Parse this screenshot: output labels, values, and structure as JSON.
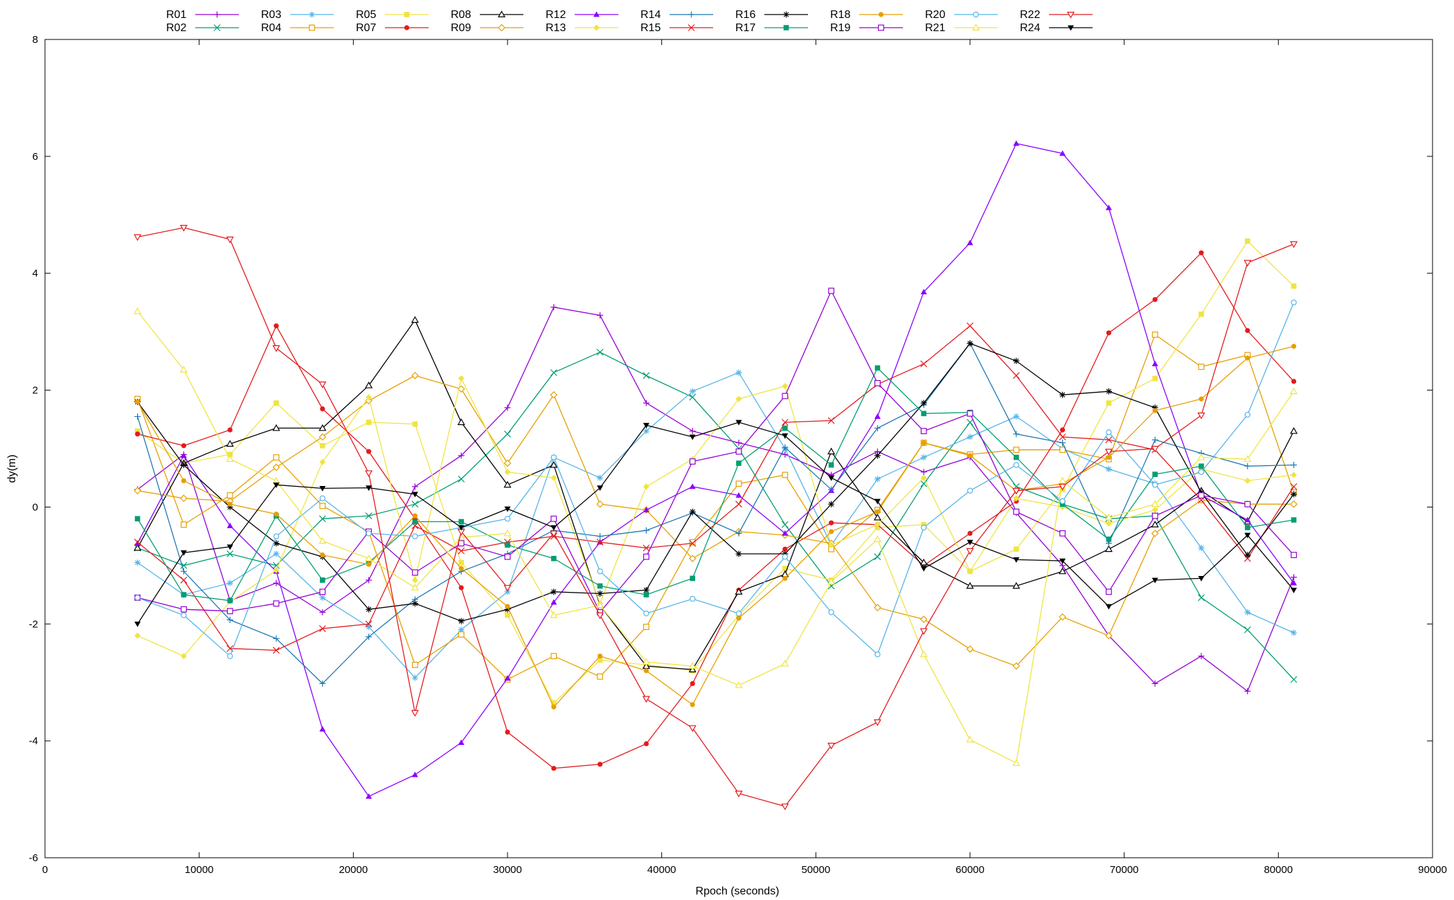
{
  "chart_data": {
    "type": "line",
    "xlabel": "Rpoch (seconds)",
    "ylabel": "dy(m)",
    "xlim": [
      0,
      90000
    ],
    "ylim": [
      -6,
      8
    ],
    "xticks": [
      0,
      10000,
      20000,
      30000,
      40000,
      50000,
      60000,
      70000,
      80000,
      90000
    ],
    "yticks": [
      -6,
      -4,
      -2,
      0,
      2,
      4,
      6,
      8
    ],
    "grid": false,
    "legend_position": "top-left, outside plot, two rows",
    "x": [
      6000,
      9000,
      12000,
      15000,
      18000,
      21000,
      24000,
      27000,
      30000,
      33000,
      36000,
      39000,
      42000,
      45000,
      48000,
      51000,
      54000,
      57000,
      60000,
      63000,
      66000,
      69000,
      72000,
      75000,
      78000,
      81000
    ],
    "series": [
      {
        "name": "R01",
        "color": "#9400d3",
        "marker": "plus",
        "values": [
          0.3,
          0.9,
          -1.6,
          -1.3,
          -1.8,
          -1.25,
          0.35,
          0.88,
          1.7,
          3.42,
          3.28,
          1.78,
          1.3,
          1.1,
          0.9,
          0.55,
          0.95,
          0.6,
          0.85,
          -0.1,
          -1.0,
          -2.2,
          -3.02,
          -2.55,
          -3.15,
          -1.2
        ]
      },
      {
        "name": "R02",
        "color": "#009e73",
        "marker": "x",
        "values": [
          -0.7,
          -1.0,
          -0.8,
          -1.0,
          -0.2,
          -0.15,
          0.05,
          0.48,
          1.25,
          2.3,
          2.65,
          2.25,
          1.88,
          1.0,
          -0.3,
          -1.35,
          -0.85,
          0.4,
          1.45,
          0.35,
          0.05,
          -0.2,
          -0.15,
          -1.55,
          -2.1,
          -2.95
        ]
      },
      {
        "name": "R03",
        "color": "#56b4e9",
        "marker": "star",
        "values": [
          -0.95,
          -1.5,
          -1.3,
          -0.8,
          -1.55,
          -2.05,
          -2.92,
          -2.1,
          -1.45,
          0.85,
          0.5,
          1.3,
          1.98,
          2.3,
          1.0,
          -0.65,
          0.48,
          0.85,
          1.2,
          1.55,
          1.0,
          0.65,
          0.4,
          -0.7,
          -1.8,
          -2.15
        ]
      },
      {
        "name": "R04",
        "color": "#e69f00",
        "marker": "open-square",
        "values": [
          1.85,
          -0.3,
          0.2,
          0.85,
          0.02,
          -0.42,
          -2.7,
          -2.18,
          -2.95,
          -2.55,
          -2.9,
          -2.05,
          -0.6,
          0.4,
          0.55,
          -0.72,
          -0.05,
          1.1,
          0.9,
          0.98,
          0.98,
          0.82,
          2.95,
          2.4,
          2.6,
          0.25
        ]
      },
      {
        "name": "R05",
        "color": "#f0e442",
        "marker": "filled-square",
        "values": [
          1.3,
          0.75,
          0.9,
          1.78,
          1.05,
          1.45,
          1.42,
          -0.95,
          -1.85,
          -3.35,
          -2.62,
          -2.7,
          -2.8,
          -1.85,
          -1.05,
          -1.25,
          -0.35,
          -0.3,
          -1.1,
          -0.72,
          0.3,
          1.78,
          2.2,
          3.3,
          4.55,
          3.78
        ]
      },
      {
        "name": "R07",
        "color": "#e41a1c",
        "marker": "filled-circle",
        "values": [
          1.25,
          1.05,
          1.32,
          3.1,
          1.68,
          0.95,
          -0.2,
          -1.38,
          -3.85,
          -4.47,
          -4.4,
          -4.05,
          -3.02,
          -1.42,
          -0.72,
          -0.27,
          -0.3,
          -1.0,
          -0.45,
          0.1,
          1.32,
          2.98,
          3.55,
          4.35,
          3.02,
          2.15
        ]
      },
      {
        "name": "R08",
        "color": "#000000",
        "marker": "open-triangle",
        "values": [
          -0.7,
          0.75,
          1.08,
          1.35,
          1.35,
          2.08,
          3.2,
          1.45,
          0.38,
          0.72,
          -1.68,
          -2.72,
          -2.78,
          -1.45,
          -1.15,
          0.95,
          -0.18,
          -0.95,
          -1.35,
          -1.35,
          -1.1,
          -0.72,
          -0.3,
          0.28,
          -0.25,
          1.3
        ]
      },
      {
        "name": "R09",
        "color": "#e69f00",
        "marker": "open-diamond",
        "values": [
          0.28,
          0.15,
          0.1,
          0.68,
          1.2,
          1.82,
          2.25,
          2.02,
          0.75,
          1.92,
          0.05,
          -0.05,
          -0.88,
          -0.42,
          -0.48,
          -0.62,
          -1.72,
          -1.92,
          -2.43,
          -2.72,
          -1.88,
          -2.2,
          -0.45,
          0.12,
          0.05,
          0.05
        ]
      },
      {
        "name": "R12",
        "color": "#8b00ff",
        "marker": "filled-triangle",
        "values": [
          -0.62,
          0.88,
          -0.32,
          -1.1,
          -3.8,
          -4.95,
          -4.58,
          -4.03,
          -2.93,
          -1.63,
          -0.6,
          -0.05,
          0.35,
          0.2,
          -0.45,
          0.28,
          1.55,
          3.68,
          4.52,
          6.22,
          6.05,
          5.12,
          2.45,
          0.2,
          -0.22,
          -1.3
        ]
      },
      {
        "name": "R13",
        "color": "#f0e442",
        "marker": "filled-diamond",
        "values": [
          -2.2,
          -2.55,
          -1.62,
          -1.08,
          0.77,
          1.88,
          -1.25,
          2.2,
          0.6,
          0.5,
          -1.65,
          0.35,
          0.82,
          1.85,
          2.07,
          -0.65,
          -0.3,
          0.5,
          -1.1,
          0.15,
          0.0,
          -0.28,
          -0.05,
          0.65,
          0.45,
          0.55
        ]
      },
      {
        "name": "R14",
        "color": "#1f78b4",
        "marker": "plus",
        "values": [
          1.55,
          -1.1,
          -1.93,
          -2.25,
          -3.02,
          -2.22,
          -1.58,
          -1.1,
          -0.8,
          -0.4,
          -0.5,
          -0.4,
          -0.1,
          -0.45,
          1.02,
          0.3,
          1.35,
          1.75,
          2.8,
          1.25,
          1.1,
          -0.62,
          1.15,
          0.92,
          0.7,
          0.72
        ]
      },
      {
        "name": "R15",
        "color": "#e41a1c",
        "marker": "x",
        "values": [
          -0.6,
          -1.25,
          -2.42,
          -2.45,
          -2.08,
          -2.0,
          -0.32,
          -0.75,
          -0.6,
          -0.5,
          -0.6,
          -0.7,
          -0.62,
          0.05,
          1.45,
          1.48,
          2.1,
          2.45,
          3.1,
          2.25,
          1.2,
          1.15,
          0.98,
          0.12,
          -0.88,
          0.35
        ]
      },
      {
        "name": "R16",
        "color": "#000000",
        "marker": "asterisk",
        "values": [
          1.8,
          0.72,
          0.0,
          -0.62,
          -0.85,
          -1.75,
          -1.65,
          -1.95,
          -1.75,
          -1.45,
          -1.48,
          -1.42,
          -0.08,
          -0.8,
          -0.8,
          0.05,
          0.88,
          1.78,
          2.8,
          2.5,
          1.92,
          1.98,
          1.7,
          0.25,
          -0.82,
          0.22
        ]
      },
      {
        "name": "R17",
        "color": "#009e73",
        "marker": "filled-square",
        "values": [
          -0.2,
          -1.5,
          -1.6,
          -0.15,
          -1.25,
          -0.95,
          -0.25,
          -0.25,
          -0.65,
          -0.88,
          -1.35,
          -1.5,
          -1.22,
          0.75,
          1.35,
          0.72,
          2.38,
          1.6,
          1.62,
          0.85,
          0.05,
          -0.55,
          0.56,
          0.7,
          -0.35,
          -0.22
        ]
      },
      {
        "name": "R18",
        "color": "#e69f00",
        "marker": "filled-circle",
        "values": [
          1.8,
          0.45,
          0.05,
          -0.12,
          -0.82,
          -0.98,
          -0.15,
          -1.05,
          -1.7,
          -3.42,
          -2.55,
          -2.8,
          -3.38,
          -1.9,
          -1.22,
          -0.42,
          -0.08,
          1.1,
          0.88,
          0.28,
          0.4,
          0.85,
          1.65,
          1.85,
          2.55,
          2.75
        ]
      },
      {
        "name": "R19",
        "color": "#9400d3",
        "marker": "open-square",
        "values": [
          -1.55,
          -1.75,
          -1.78,
          -1.65,
          -1.45,
          -0.42,
          -1.12,
          -0.62,
          -0.85,
          -0.2,
          -1.8,
          -0.85,
          0.78,
          0.95,
          1.9,
          3.7,
          2.12,
          1.3,
          1.6,
          -0.08,
          -0.45,
          -1.45,
          -0.15,
          0.2,
          0.05,
          -0.82
        ]
      },
      {
        "name": "R20",
        "color": "#56b4e9",
        "marker": "open-circle",
        "values": [
          -1.55,
          -1.85,
          -2.55,
          -0.5,
          0.15,
          -0.45,
          -0.5,
          -0.35,
          -0.2,
          0.85,
          -1.1,
          -1.82,
          -1.57,
          -1.82,
          -0.85,
          -1.8,
          -2.52,
          -0.35,
          0.28,
          0.72,
          0.1,
          1.28,
          0.38,
          0.6,
          1.58,
          3.5
        ]
      },
      {
        "name": "R21",
        "color": "#f0e442",
        "marker": "open-triangle",
        "values": [
          3.35,
          2.35,
          0.82,
          0.45,
          -0.58,
          -0.88,
          -1.38,
          -0.52,
          -0.45,
          -1.85,
          -1.68,
          -2.65,
          -2.72,
          -3.05,
          -2.68,
          -1.28,
          -0.55,
          -2.52,
          -3.98,
          -4.38,
          0.45,
          -0.18,
          0.05,
          0.85,
          0.82,
          1.98
        ]
      },
      {
        "name": "R22",
        "color": "#e41a1c",
        "marker": "open-inverted-triangle",
        "values": [
          4.62,
          4.78,
          4.58,
          2.72,
          2.1,
          0.58,
          -3.52,
          -0.42,
          -1.38,
          -0.45,
          -1.85,
          -3.28,
          -3.78,
          -4.9,
          -5.12,
          -4.08,
          -3.68,
          -2.12,
          -0.75,
          0.28,
          0.35,
          0.95,
          1.0,
          1.57,
          4.18,
          4.5
        ]
      },
      {
        "name": "R24",
        "color": "#000000",
        "marker": "filled-inverted-triangle",
        "values": [
          -2.0,
          -0.78,
          -0.68,
          0.38,
          0.32,
          0.33,
          0.22,
          -0.35,
          -0.03,
          -0.35,
          0.33,
          1.4,
          1.2,
          1.45,
          1.22,
          0.5,
          0.1,
          -1.05,
          -0.6,
          -0.9,
          -0.92,
          -1.7,
          -1.25,
          -1.22,
          -0.48,
          -1.42
        ]
      }
    ]
  }
}
